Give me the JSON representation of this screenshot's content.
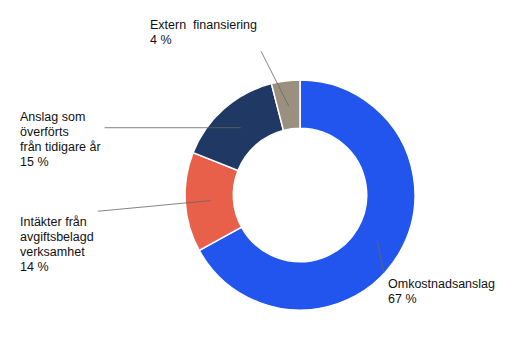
{
  "chart_data": {
    "type": "donut",
    "categories": [
      "Omkostnadsanslag",
      "Intäkter från\navgiftsbelagd\nverksamhet",
      "Anslag som\növerförts\nfrån tidigare år",
      "Extern  finansiering"
    ],
    "values": [
      67,
      14,
      15,
      4
    ],
    "value_labels": [
      "67 %",
      "14 %",
      "15 %",
      "4 %"
    ],
    "colors": [
      "#2255EE",
      "#E8604A",
      "#1F3864",
      "#9B9080"
    ],
    "data_labels": true
  }
}
